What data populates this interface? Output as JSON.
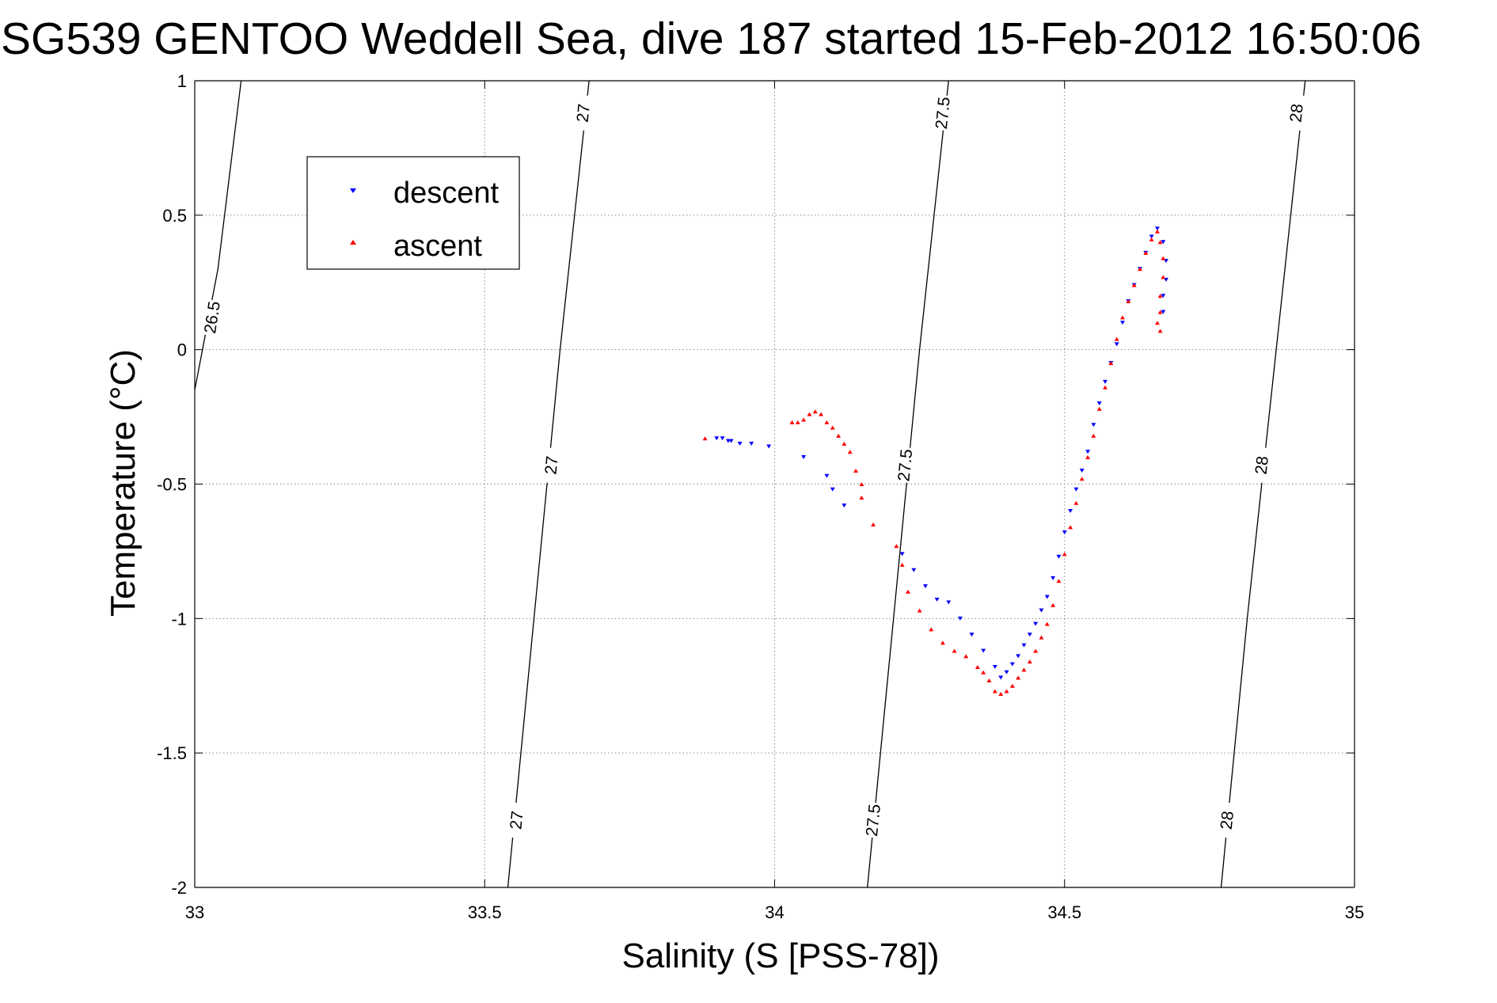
{
  "chart_data": {
    "type": "scatter",
    "title": "SG539 GENTOO Weddell Sea, dive 187 started 15-Feb-2012 16:50:06",
    "xlabel": "Salinity (S [PSS-78])",
    "ylabel": "Temperature (°C)",
    "xlim": [
      33,
      35
    ],
    "ylim": [
      -2,
      1
    ],
    "xticks": [
      33,
      33.5,
      34,
      34.5,
      35
    ],
    "xtick_labels": [
      "33",
      "33.5",
      "34",
      "34.5",
      "35"
    ],
    "yticks": [
      -2,
      -1.5,
      -1,
      -0.5,
      0,
      0.5,
      1
    ],
    "ytick_labels": [
      "-2",
      "-1.5",
      "-1",
      "-0.5",
      "0",
      "0.5",
      "1"
    ],
    "grid": true,
    "legend_position": "top-left",
    "colors": {
      "descent": "#0000ff",
      "ascent": "#ff0000",
      "contour": "#000000"
    },
    "isopycnals": [
      {
        "label": "26.5",
        "points": [
          [
            33.0,
            -0.15
          ],
          [
            33.04,
            0.3
          ],
          [
            33.08,
            1.0
          ]
        ],
        "label_positions": [
          [
            33.03,
            0.12
          ]
        ]
      },
      {
        "label": "27",
        "points": [
          [
            33.54,
            -2.0
          ],
          [
            33.585,
            -1.0
          ],
          [
            33.63,
            0.0
          ],
          [
            33.68,
            1.0
          ]
        ],
        "label_positions": [
          [
            33.555,
            -1.75
          ],
          [
            33.615,
            -0.43
          ],
          [
            33.67,
            0.88
          ]
        ]
      },
      {
        "label": "27.5",
        "points": [
          [
            34.16,
            -2.0
          ],
          [
            34.205,
            -1.0
          ],
          [
            34.25,
            0.0
          ],
          [
            34.3,
            1.0
          ]
        ],
        "label_positions": [
          [
            34.17,
            -1.75
          ],
          [
            34.225,
            -0.43
          ],
          [
            34.29,
            0.88
          ]
        ]
      },
      {
        "label": "28",
        "points": [
          [
            34.77,
            -2.0
          ],
          [
            34.815,
            -1.0
          ],
          [
            34.865,
            0.0
          ],
          [
            34.915,
            1.0
          ]
        ],
        "label_positions": [
          [
            34.78,
            -1.75
          ],
          [
            34.84,
            -0.43
          ],
          [
            34.9,
            0.88
          ]
        ]
      }
    ],
    "series": [
      {
        "name": "descent",
        "marker": "triangle-down",
        "points": [
          [
            33.9,
            -0.33
          ],
          [
            33.91,
            -0.33
          ],
          [
            33.92,
            -0.34
          ],
          [
            33.925,
            -0.34
          ],
          [
            33.94,
            -0.35
          ],
          [
            33.96,
            -0.35
          ],
          [
            33.99,
            -0.36
          ],
          [
            34.05,
            -0.4
          ],
          [
            34.09,
            -0.47
          ],
          [
            34.1,
            -0.52
          ],
          [
            34.12,
            -0.58
          ],
          [
            34.22,
            -0.76
          ],
          [
            34.24,
            -0.82
          ],
          [
            34.26,
            -0.88
          ],
          [
            34.28,
            -0.93
          ],
          [
            34.3,
            -0.94
          ],
          [
            34.32,
            -1.0
          ],
          [
            34.34,
            -1.06
          ],
          [
            34.36,
            -1.12
          ],
          [
            34.38,
            -1.18
          ],
          [
            34.39,
            -1.22
          ],
          [
            34.4,
            -1.2
          ],
          [
            34.41,
            -1.17
          ],
          [
            34.42,
            -1.14
          ],
          [
            34.43,
            -1.1
          ],
          [
            34.44,
            -1.06
          ],
          [
            34.45,
            -1.02
          ],
          [
            34.46,
            -0.97
          ],
          [
            34.47,
            -0.92
          ],
          [
            34.48,
            -0.85
          ],
          [
            34.49,
            -0.77
          ],
          [
            34.5,
            -0.68
          ],
          [
            34.51,
            -0.6
          ],
          [
            34.52,
            -0.52
          ],
          [
            34.53,
            -0.45
          ],
          [
            34.54,
            -0.38
          ],
          [
            34.55,
            -0.28
          ],
          [
            34.56,
            -0.2
          ],
          [
            34.57,
            -0.12
          ],
          [
            34.58,
            -0.05
          ],
          [
            34.59,
            0.02
          ],
          [
            34.6,
            0.1
          ],
          [
            34.61,
            0.18
          ],
          [
            34.62,
            0.24
          ],
          [
            34.63,
            0.3
          ],
          [
            34.64,
            0.36
          ],
          [
            34.65,
            0.42
          ],
          [
            34.66,
            0.45
          ],
          [
            34.67,
            0.4
          ],
          [
            34.675,
            0.33
          ],
          [
            34.675,
            0.26
          ],
          [
            34.67,
            0.2
          ],
          [
            34.67,
            0.14
          ]
        ]
      },
      {
        "name": "ascent",
        "marker": "triangle-up",
        "points": [
          [
            33.88,
            -0.33
          ],
          [
            34.03,
            -0.27
          ],
          [
            34.04,
            -0.27
          ],
          [
            34.05,
            -0.26
          ],
          [
            34.06,
            -0.24
          ],
          [
            34.07,
            -0.23
          ],
          [
            34.08,
            -0.24
          ],
          [
            34.09,
            -0.27
          ],
          [
            34.1,
            -0.29
          ],
          [
            34.11,
            -0.32
          ],
          [
            34.12,
            -0.35
          ],
          [
            34.13,
            -0.38
          ],
          [
            34.14,
            -0.45
          ],
          [
            34.15,
            -0.5
          ],
          [
            34.15,
            -0.55
          ],
          [
            34.17,
            -0.65
          ],
          [
            34.21,
            -0.73
          ],
          [
            34.22,
            -0.8
          ],
          [
            34.23,
            -0.9
          ],
          [
            34.25,
            -0.97
          ],
          [
            34.27,
            -1.04
          ],
          [
            34.29,
            -1.09
          ],
          [
            34.31,
            -1.12
          ],
          [
            34.33,
            -1.14
          ],
          [
            34.35,
            -1.18
          ],
          [
            34.36,
            -1.2
          ],
          [
            34.37,
            -1.23
          ],
          [
            34.38,
            -1.27
          ],
          [
            34.39,
            -1.28
          ],
          [
            34.4,
            -1.27
          ],
          [
            34.41,
            -1.25
          ],
          [
            34.42,
            -1.22
          ],
          [
            34.43,
            -1.19
          ],
          [
            34.44,
            -1.16
          ],
          [
            34.45,
            -1.12
          ],
          [
            34.46,
            -1.07
          ],
          [
            34.47,
            -1.02
          ],
          [
            34.48,
            -0.95
          ],
          [
            34.49,
            -0.86
          ],
          [
            34.5,
            -0.76
          ],
          [
            34.51,
            -0.66
          ],
          [
            34.52,
            -0.57
          ],
          [
            34.53,
            -0.48
          ],
          [
            34.54,
            -0.4
          ],
          [
            34.55,
            -0.32
          ],
          [
            34.56,
            -0.22
          ],
          [
            34.57,
            -0.14
          ],
          [
            34.58,
            -0.05
          ],
          [
            34.59,
            0.04
          ],
          [
            34.6,
            0.12
          ],
          [
            34.61,
            0.18
          ],
          [
            34.62,
            0.24
          ],
          [
            34.63,
            0.3
          ],
          [
            34.64,
            0.36
          ],
          [
            34.65,
            0.41
          ],
          [
            34.66,
            0.44
          ],
          [
            34.665,
            0.4
          ],
          [
            34.67,
            0.34
          ],
          [
            34.67,
            0.27
          ],
          [
            34.665,
            0.2
          ],
          [
            34.665,
            0.14
          ],
          [
            34.66,
            0.1
          ],
          [
            34.665,
            0.07
          ]
        ]
      }
    ]
  }
}
